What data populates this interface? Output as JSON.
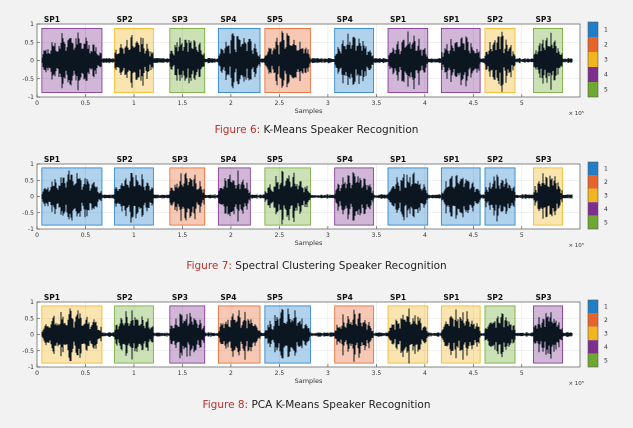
{
  "figures": [
    {
      "caption_prefix": "Figure 6:",
      "caption_text": "K-Means Speaker Recognition",
      "chart_data": {
        "type": "area",
        "xlabel": "Samples",
        "x_exponent": "× 10⁵",
        "xlim": [
          0,
          5.6
        ],
        "ylim": [
          -1,
          1
        ],
        "xticks": [
          "0",
          "0.5",
          "1",
          "1.5",
          "2",
          "2.5",
          "3",
          "3.5",
          "4",
          "4.5",
          "5"
        ],
        "yticks": [
          "1",
          "0.5",
          "0",
          "-0.5",
          "-1"
        ],
        "segments": [
          {
            "label": "SP1",
            "start": 0.05,
            "end": 0.67,
            "cluster": 4
          },
          {
            "label": "SP2",
            "start": 0.8,
            "end": 1.2,
            "cluster": 3
          },
          {
            "label": "SP3",
            "start": 1.37,
            "end": 1.73,
            "cluster": 5
          },
          {
            "label": "SP4",
            "start": 1.87,
            "end": 2.3,
            "cluster": 1
          },
          {
            "label": "SP5",
            "start": 2.35,
            "end": 2.82,
            "cluster": 2
          },
          {
            "label": "SP4",
            "start": 3.07,
            "end": 3.47,
            "cluster": 1
          },
          {
            "label": "SP1",
            "start": 3.62,
            "end": 4.03,
            "cluster": 4
          },
          {
            "label": "SP1",
            "start": 4.17,
            "end": 4.57,
            "cluster": 4
          },
          {
            "label": "SP2",
            "start": 4.62,
            "end": 4.93,
            "cluster": 3
          },
          {
            "label": "SP3",
            "start": 5.12,
            "end": 5.42,
            "cluster": 5
          }
        ],
        "colorbar": [
          "1",
          "2",
          "3",
          "4",
          "5"
        ]
      }
    },
    {
      "caption_prefix": "Figure 7:",
      "caption_text": "Spectral Clustering Speaker Recognition",
      "chart_data": {
        "type": "area",
        "xlabel": "Samples",
        "x_exponent": "× 10⁵",
        "xlim": [
          0,
          5.6
        ],
        "ylim": [
          -1,
          1
        ],
        "xticks": [
          "0",
          "0.5",
          "1",
          "1.5",
          "2",
          "2.5",
          "3",
          "3.5",
          "4",
          "4.5",
          "5"
        ],
        "yticks": [
          "1",
          "0.5",
          "0",
          "-0.5",
          "-1"
        ],
        "segments": [
          {
            "label": "SP1",
            "start": 0.05,
            "end": 0.67,
            "cluster": 1
          },
          {
            "label": "SP2",
            "start": 0.8,
            "end": 1.2,
            "cluster": 1
          },
          {
            "label": "SP3",
            "start": 1.37,
            "end": 1.73,
            "cluster": 2
          },
          {
            "label": "SP4",
            "start": 1.87,
            "end": 2.2,
            "cluster": 4
          },
          {
            "label": "SP5",
            "start": 2.35,
            "end": 2.82,
            "cluster": 5
          },
          {
            "label": "SP4",
            "start": 3.07,
            "end": 3.47,
            "cluster": 4
          },
          {
            "label": "SP1",
            "start": 3.62,
            "end": 4.03,
            "cluster": 1
          },
          {
            "label": "SP1",
            "start": 4.17,
            "end": 4.57,
            "cluster": 1
          },
          {
            "label": "SP2",
            "start": 4.62,
            "end": 4.93,
            "cluster": 1
          },
          {
            "label": "SP3",
            "start": 5.12,
            "end": 5.42,
            "cluster": 3
          }
        ],
        "colorbar": [
          "1",
          "2",
          "3",
          "4",
          "5"
        ]
      }
    },
    {
      "caption_prefix": "Figure 8:",
      "caption_text": "PCA K-Means Speaker Recognition",
      "chart_data": {
        "type": "area",
        "xlabel": "Samples",
        "x_exponent": "× 10⁵",
        "xlim": [
          0,
          5.6
        ],
        "ylim": [
          -1,
          1
        ],
        "xticks": [
          "0",
          "0.5",
          "1",
          "1.5",
          "2",
          "2.5",
          "3",
          "3.5",
          "4",
          "4.5",
          "5"
        ],
        "yticks": [
          "1",
          "0.5",
          "0",
          "-0.5",
          "-1"
        ],
        "segments": [
          {
            "label": "SP1",
            "start": 0.05,
            "end": 0.67,
            "cluster": 3
          },
          {
            "label": "SP2",
            "start": 0.8,
            "end": 1.2,
            "cluster": 5
          },
          {
            "label": "SP3",
            "start": 1.37,
            "end": 1.73,
            "cluster": 4
          },
          {
            "label": "SP4",
            "start": 1.87,
            "end": 2.3,
            "cluster": 2
          },
          {
            "label": "SP5",
            "start": 2.35,
            "end": 2.82,
            "cluster": 1
          },
          {
            "label": "SP4",
            "start": 3.07,
            "end": 3.47,
            "cluster": 2
          },
          {
            "label": "SP1",
            "start": 3.62,
            "end": 4.03,
            "cluster": 3
          },
          {
            "label": "SP1",
            "start": 4.17,
            "end": 4.57,
            "cluster": 3
          },
          {
            "label": "SP2",
            "start": 4.62,
            "end": 4.93,
            "cluster": 5
          },
          {
            "label": "SP3",
            "start": 5.12,
            "end": 5.42,
            "cluster": 4
          }
        ],
        "colorbar": [
          "1",
          "2",
          "3",
          "4",
          "5"
        ]
      }
    }
  ],
  "cluster_colors": {
    "1": "#1f7ec8",
    "2": "#e8642a",
    "3": "#f2b51d",
    "4": "#7e2e8e",
    "5": "#6ea82f"
  }
}
